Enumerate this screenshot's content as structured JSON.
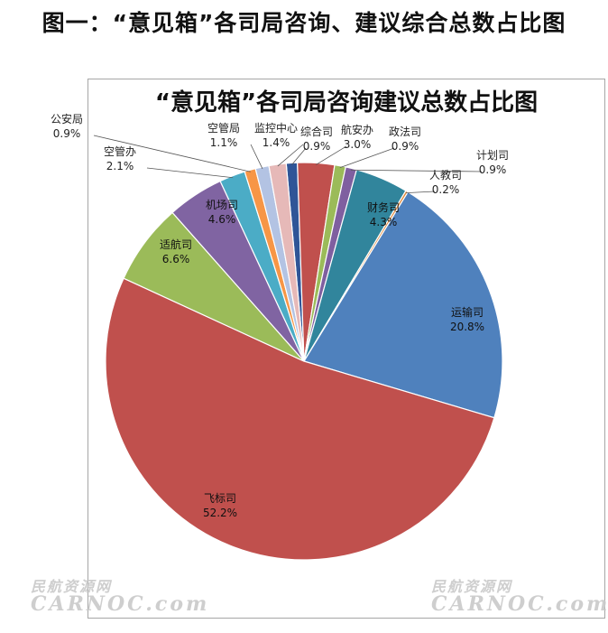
{
  "page": {
    "heading": "图一：“意见箱”各司局咨询、建议综合总数占比图"
  },
  "chart_data": {
    "type": "pie",
    "title": "“意见箱”各司局咨询建议总数占比图",
    "slices": [
      {
        "name": "综合司",
        "value": 0.9,
        "label": "0.9%",
        "color": "#2f5597"
      },
      {
        "name": "航安办",
        "value": 3.0,
        "label": "3.0%",
        "color": "#c0504d"
      },
      {
        "name": "政法司",
        "value": 0.9,
        "label": "0.9%",
        "color": "#9bbb59"
      },
      {
        "name": "计划司",
        "value": 0.9,
        "label": "0.9%",
        "color": "#7f5fa0"
      },
      {
        "name": "财务司",
        "value": 4.3,
        "label": "4.3%",
        "color": "#31859c"
      },
      {
        "name": "人教司",
        "value": 0.2,
        "label": "0.2%",
        "color": "#e08a3b"
      },
      {
        "name": "运输司",
        "value": 20.8,
        "label": "20.8%",
        "color": "#4f81bd"
      },
      {
        "name": "飞标司",
        "value": 52.2,
        "label": "52.2%",
        "color": "#c0504d"
      },
      {
        "name": "适航司",
        "value": 6.6,
        "label": "6.6%",
        "color": "#9bbb59"
      },
      {
        "name": "机场司",
        "value": 4.6,
        "label": "4.6%",
        "color": "#8064a2"
      },
      {
        "name": "空管办",
        "value": 2.1,
        "label": "2.1%",
        "color": "#4bacc6"
      },
      {
        "name": "公安局",
        "value": 0.9,
        "label": "0.9%",
        "color": "#f79646"
      },
      {
        "name": "空管局",
        "value": 1.1,
        "label": "1.1%",
        "color": "#b3c3e3"
      },
      {
        "name": "监控中心",
        "value": 1.4,
        "label": "1.4%",
        "color": "#e6b9b8"
      }
    ],
    "legend": "none"
  },
  "watermark": {
    "cn": "民航资源网",
    "en": "CARNOC.com"
  }
}
